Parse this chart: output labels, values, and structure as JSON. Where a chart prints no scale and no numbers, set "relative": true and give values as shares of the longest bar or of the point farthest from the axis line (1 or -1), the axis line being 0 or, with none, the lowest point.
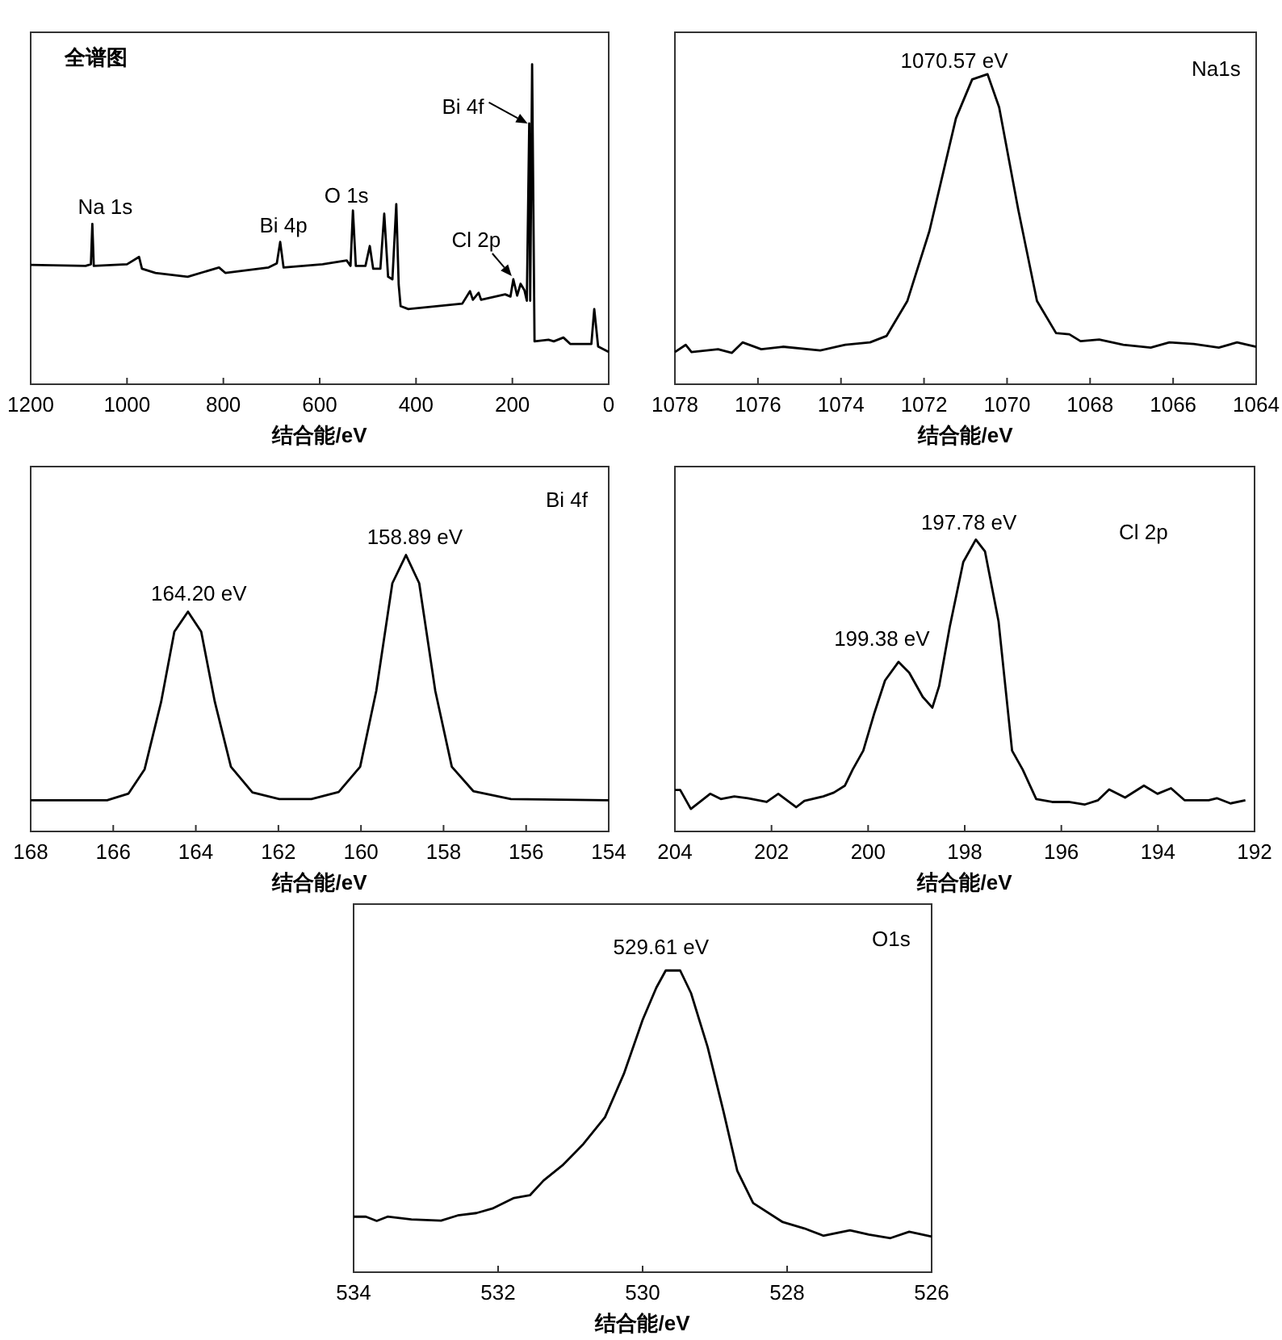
{
  "chart_data": [
    {
      "type": "line",
      "title": "全谱图",
      "xlabel": "结合能/eV",
      "relative": true,
      "tick_labels": "x",
      "xlim": [
        1200,
        0
      ],
      "xticks": [
        1200,
        1000,
        800,
        600,
        400,
        200,
        0
      ],
      "x": [
        1200,
        1086,
        1075,
        1072,
        1069,
        1000,
        975,
        969,
        941,
        874,
        809,
        796,
        706,
        689,
        682,
        675,
        594,
        544,
        536,
        531,
        525,
        505,
        496,
        489,
        474,
        466,
        458,
        449,
        441,
        436,
        432,
        416,
        304,
        288,
        282,
        270,
        265,
        215,
        204,
        198,
        190,
        183,
        175,
        170,
        165,
        163,
        159,
        154,
        125,
        114,
        94,
        80,
        36,
        30,
        22,
        0
      ],
      "series": [
        {
          "color": "#000000",
          "values": [
            0.373,
            0.37,
            0.375,
            0.501,
            0.37,
            0.375,
            0.398,
            0.361,
            0.348,
            0.336,
            0.365,
            0.348,
            0.365,
            0.378,
            0.445,
            0.365,
            0.375,
            0.387,
            0.37,
            0.543,
            0.37,
            0.37,
            0.432,
            0.361,
            0.361,
            0.533,
            0.336,
            0.328,
            0.563,
            0.311,
            0.244,
            0.235,
            0.252,
            0.291,
            0.264,
            0.286,
            0.264,
            0.281,
            0.274,
            0.328,
            0.277,
            0.314,
            0.294,
            0.261,
            0.815,
            0.261,
            1,
            0.134,
            0.139,
            0.134,
            0.146,
            0.126,
            0.126,
            0.235,
            0.118,
            0.101
          ]
        }
      ],
      "annotations": [
        {
          "text": "Na 1s",
          "x": 1072,
          "y": 0.501
        },
        {
          "text": "Bi 4p",
          "x": 682,
          "y": 0.445
        },
        {
          "text": "O 1s",
          "x": 531,
          "y": 0.543
        },
        {
          "text": "Bi 4f",
          "x": 165,
          "y": 0.815
        },
        {
          "text": "Cl 2p",
          "x": 198,
          "y": 0.328
        }
      ]
    },
    {
      "type": "line",
      "title": "Na1s",
      "xlabel": "结合能/eV",
      "relative": true,
      "tick_labels": "x",
      "xlim": [
        1078,
        1064
      ],
      "xticks": [
        1078,
        1076,
        1074,
        1072,
        1070,
        1068,
        1066,
        1064
      ],
      "x": [
        1078,
        1077.74,
        1077.6,
        1076.96,
        1076.63,
        1076.37,
        1075.92,
        1075.4,
        1074.5,
        1073.9,
        1073.3,
        1072.9,
        1072.4,
        1071.87,
        1071.23,
        1070.84,
        1070.47,
        1070.19,
        1069.73,
        1069.28,
        1068.82,
        1068.5,
        1068.23,
        1067.78,
        1067.2,
        1066.54,
        1066.09,
        1065.5,
        1064.9,
        1064.46,
        1064
      ],
      "series": [
        {
          "color": "#000000",
          "values": [
            0.104,
            0.127,
            0.104,
            0.113,
            0.101,
            0.135,
            0.113,
            0.121,
            0.109,
            0.127,
            0.135,
            0.156,
            0.269,
            0.494,
            0.858,
            0.983,
            1,
            0.893,
            0.563,
            0.269,
            0.165,
            0.161,
            0.139,
            0.144,
            0.127,
            0.118,
            0.135,
            0.13,
            0.118,
            0.135,
            0.121
          ]
        }
      ],
      "annotations": [
        {
          "text": "1070.57 eV",
          "x": 1070.57,
          "y": 1
        }
      ]
    },
    {
      "type": "line",
      "title": "Bi 4f",
      "xlabel": "结合能/eV",
      "relative": true,
      "tick_labels": "x",
      "xlim": [
        168,
        154
      ],
      "xticks": [
        168,
        166,
        164,
        162,
        160,
        158,
        156,
        154
      ],
      "x": [
        168,
        166.15,
        165.63,
        165.24,
        164.84,
        164.52,
        164.19,
        163.87,
        163.54,
        163.15,
        162.63,
        161.98,
        161.2,
        160.54,
        160.02,
        159.63,
        159.24,
        158.91,
        158.59,
        158.2,
        157.8,
        157.28,
        156.37,
        154
      ],
      "series": [
        {
          "color": "#000000",
          "values": [
            0.113,
            0.113,
            0.137,
            0.225,
            0.469,
            0.723,
            0.795,
            0.723,
            0.469,
            0.234,
            0.141,
            0.117,
            0.117,
            0.143,
            0.234,
            0.508,
            0.898,
            1,
            0.898,
            0.508,
            0.234,
            0.146,
            0.117,
            0.113
          ]
        }
      ],
      "annotations": [
        {
          "text": "164.20 eV",
          "x": 164.2,
          "y": 0.795
        },
        {
          "text": "158.89 eV",
          "x": 158.89,
          "y": 1
        }
      ]
    },
    {
      "type": "line",
      "title": "Cl 2p",
      "xlabel": "结合能/eV",
      "relative": true,
      "tick_labels": "x",
      "xlim": [
        204,
        192
      ],
      "xticks": [
        204,
        202,
        200,
        198,
        196,
        194,
        192
      ],
      "x": [
        204,
        203.89,
        203.67,
        203.44,
        203.27,
        203.05,
        202.77,
        202.49,
        202.1,
        201.86,
        201.49,
        201.32,
        200.93,
        200.71,
        200.48,
        200.32,
        200.1,
        199.87,
        199.65,
        199.37,
        199.15,
        198.87,
        198.67,
        198.53,
        198.31,
        198.03,
        197.77,
        197.58,
        197.3,
        197.02,
        196.8,
        196.52,
        196.19,
        195.85,
        195.52,
        195.24,
        195.01,
        194.68,
        194.29,
        194.01,
        193.73,
        193.45,
        192.95,
        192.78,
        192.5,
        192.19
      ],
      "series": [
        {
          "color": "#000000",
          "values": [
            0.142,
            0.142,
            0.077,
            0.107,
            0.129,
            0.111,
            0.12,
            0.114,
            0.101,
            0.129,
            0.083,
            0.105,
            0.12,
            0.133,
            0.157,
            0.212,
            0.277,
            0.406,
            0.517,
            0.581,
            0.544,
            0.461,
            0.424,
            0.498,
            0.701,
            0.923,
            1,
            0.959,
            0.72,
            0.277,
            0.212,
            0.111,
            0.101,
            0.101,
            0.092,
            0.107,
            0.144,
            0.116,
            0.157,
            0.129,
            0.148,
            0.107,
            0.107,
            0.114,
            0.096,
            0.107
          ]
        }
      ],
      "annotations": [
        {
          "text": "199.38 eV",
          "x": 199.38,
          "y": 0.581
        },
        {
          "text": "197.78 eV",
          "x": 197.78,
          "y": 1
        }
      ]
    },
    {
      "type": "line",
      "title": "O1s",
      "xlabel": "结合能/eV",
      "relative": true,
      "tick_labels": "x",
      "xlim": [
        534,
        526
      ],
      "xticks": [
        534,
        532,
        530,
        528,
        526
      ],
      "x": [
        534,
        533.83,
        533.68,
        533.53,
        533.2,
        532.79,
        532.56,
        532.3,
        532.08,
        531.78,
        531.56,
        531.37,
        531.11,
        530.82,
        530.52,
        530.26,
        530,
        529.81,
        529.68,
        529.48,
        529.33,
        529.1,
        528.88,
        528.69,
        528.47,
        528.06,
        527.76,
        527.5,
        527.13,
        526.87,
        526.57,
        526.31,
        526
      ],
      "series": [
        {
          "color": "#000000",
          "values": [
            0.184,
            0.184,
            0.17,
            0.184,
            0.175,
            0.171,
            0.188,
            0.196,
            0.211,
            0.246,
            0.255,
            0.304,
            0.354,
            0.425,
            0.514,
            0.657,
            0.836,
            0.943,
            1,
            1,
            0.925,
            0.746,
            0.532,
            0.336,
            0.229,
            0.166,
            0.145,
            0.121,
            0.139,
            0.125,
            0.113,
            0.134,
            0.118
          ]
        }
      ],
      "annotations": [
        {
          "text": "529.61 eV",
          "x": 529.61,
          "y": 1
        }
      ]
    }
  ]
}
